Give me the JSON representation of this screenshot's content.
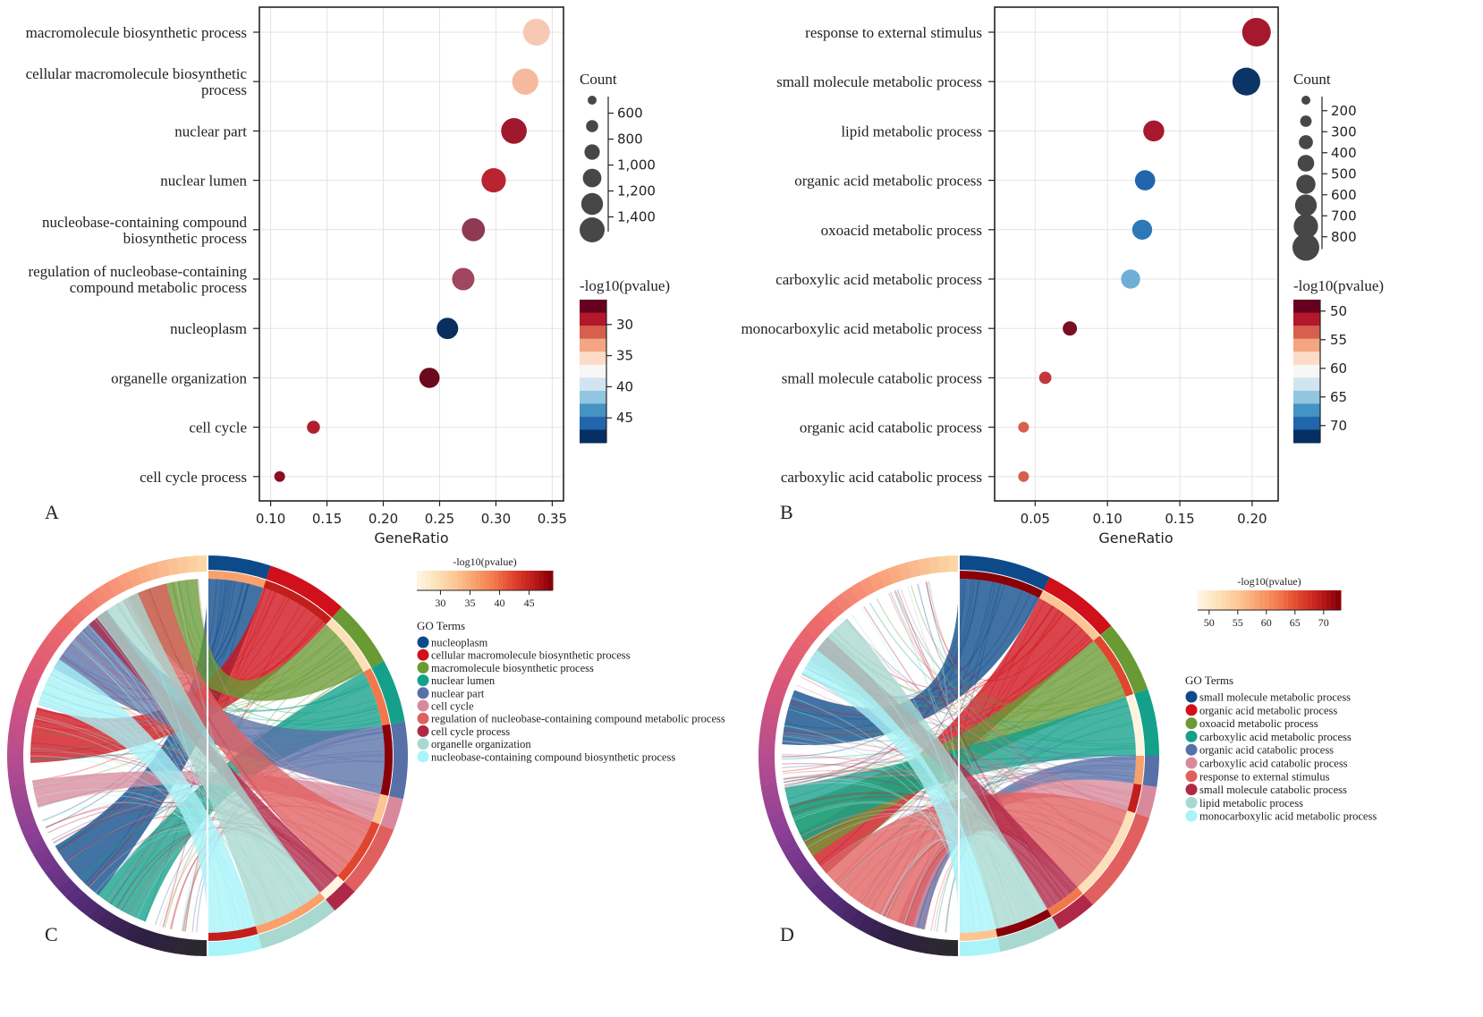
{
  "panel_labels": [
    "A",
    "B",
    "C",
    "D"
  ],
  "chart_data": [
    {
      "panel": "A",
      "type": "scatter",
      "xlabel": "GeneRatio",
      "xlim": [
        0.09,
        0.36
      ],
      "x_ticks": [
        0.1,
        0.15,
        0.2,
        0.25,
        0.3,
        0.35
      ],
      "x_tick_labels": [
        "0.10",
        "0.15",
        "0.20",
        "0.25",
        "0.30",
        "0.35"
      ],
      "grid": true,
      "size_legend": {
        "title": "Count",
        "ticks": [
          "600",
          "800",
          "1,000",
          "1,200",
          "1,400"
        ],
        "values": [
          600,
          800,
          1000,
          1200,
          1400
        ]
      },
      "color_legend": {
        "title": "-log10(pvalue)",
        "ticks": [
          "30",
          "35",
          "40",
          "45"
        ],
        "range": [
          26,
          49
        ],
        "reversed": true
      },
      "terms": [
        {
          "label": [
            "macromolecule biosynthetic process"
          ],
          "gene_ratio": 0.336,
          "count": 1450,
          "pvalue_log10": 34,
          "color": "#f7c8b3"
        },
        {
          "label": [
            "cellular macromolecule biosynthetic",
            "process"
          ],
          "gene_ratio": 0.326,
          "count": 1410,
          "pvalue_log10": 33,
          "color": "#f6b99e"
        },
        {
          "label": [
            "nuclear part"
          ],
          "gene_ratio": 0.316,
          "count": 1380,
          "pvalue_log10": 28,
          "color": "#a0182d"
        },
        {
          "label": [
            "nuclear lumen"
          ],
          "gene_ratio": 0.298,
          "count": 1300,
          "pvalue_log10": 29,
          "color": "#b82430"
        },
        {
          "label": [
            "nucleobase-containing compound",
            "biosynthetic process"
          ],
          "gene_ratio": 0.28,
          "count": 1220,
          "pvalue_log10": 26,
          "color": "#8d3a52"
        },
        {
          "label": [
            "regulation of nucleobase-containing",
            "compound metabolic process"
          ],
          "gene_ratio": 0.271,
          "count": 1180,
          "pvalue_log10": 26,
          "color": "#a14660"
        },
        {
          "label": [
            "nucleoplasm"
          ],
          "gene_ratio": 0.257,
          "count": 1120,
          "pvalue_log10": 48,
          "color": "#0a2f5f"
        },
        {
          "label": [
            "organelle organization"
          ],
          "gene_ratio": 0.241,
          "count": 1050,
          "pvalue_log10": 27,
          "color": "#6b0a1c"
        },
        {
          "label": [
            "cell cycle"
          ],
          "gene_ratio": 0.138,
          "count": 610,
          "pvalue_log10": 28,
          "color": "#b01f30"
        },
        {
          "label": [
            "cell cycle process"
          ],
          "gene_ratio": 0.108,
          "count": 470,
          "pvalue_log10": 27,
          "color": "#8a0d24"
        }
      ]
    },
    {
      "panel": "B",
      "type": "scatter",
      "xlabel": "GeneRatio",
      "xlim": [
        0.022,
        0.218
      ],
      "x_ticks": [
        0.05,
        0.1,
        0.15,
        0.2
      ],
      "x_tick_labels": [
        "0.05",
        "0.10",
        "0.15",
        "0.20"
      ],
      "grid": true,
      "size_legend": {
        "title": "Count",
        "ticks": [
          "200",
          "300",
          "400",
          "500",
          "600",
          "700",
          "800"
        ],
        "values": [
          200,
          300,
          400,
          500,
          600,
          700,
          800
        ]
      },
      "color_legend": {
        "title": "-log10(pvalue)",
        "ticks": [
          "50",
          "55",
          "60",
          "65",
          "70"
        ],
        "range": [
          48,
          73
        ],
        "reversed": true
      },
      "terms": [
        {
          "label": [
            "response to external stimulus"
          ],
          "gene_ratio": 0.203,
          "count": 840,
          "pvalue_log10": 51,
          "color": "#a5192e"
        },
        {
          "label": [
            "small molecule metabolic process"
          ],
          "gene_ratio": 0.196,
          "count": 810,
          "pvalue_log10": 72,
          "color": "#0c3466"
        },
        {
          "label": [
            "lipid metabolic process"
          ],
          "gene_ratio": 0.132,
          "count": 560,
          "pvalue_log10": 51,
          "color": "#a8192e"
        },
        {
          "label": [
            "organic acid metabolic process"
          ],
          "gene_ratio": 0.126,
          "count": 530,
          "pvalue_log10": 68,
          "color": "#2166ac"
        },
        {
          "label": [
            "oxoacid metabolic process"
          ],
          "gene_ratio": 0.124,
          "count": 520,
          "pvalue_log10": 67,
          "color": "#2e78b8"
        },
        {
          "label": [
            "carboxylic acid metabolic process"
          ],
          "gene_ratio": 0.116,
          "count": 490,
          "pvalue_log10": 64,
          "color": "#6faed5"
        },
        {
          "label": [
            "monocarboxylic acid metabolic process"
          ],
          "gene_ratio": 0.074,
          "count": 310,
          "pvalue_log10": 50,
          "color": "#7a0e22"
        },
        {
          "label": [
            "small molecule catabolic process"
          ],
          "gene_ratio": 0.057,
          "count": 240,
          "pvalue_log10": 53,
          "color": "#c2383a"
        },
        {
          "label": [
            "organic acid catabolic process"
          ],
          "gene_ratio": 0.042,
          "count": 180,
          "pvalue_log10": 55,
          "color": "#d6604d"
        },
        {
          "label": [
            "carboxylic acid catabolic process"
          ],
          "gene_ratio": 0.042,
          "count": 180,
          "pvalue_log10": 55,
          "color": "#d6604d"
        }
      ]
    },
    {
      "panel": "C",
      "type": "chord",
      "color_legend": {
        "title": "-log10(pvalue)",
        "ticks": [
          "30",
          "35",
          "40",
          "45"
        ],
        "range": [
          26,
          49
        ]
      },
      "legend_title": "GO Terms",
      "terms": [
        {
          "name": "nucleoplasm",
          "color": "#0d4a8a",
          "share": 0.07
        },
        {
          "name": "cellular macromolecule biosynthetic process",
          "color": "#d0101a",
          "share": 0.09
        },
        {
          "name": "macromolecule biosynthetic process",
          "color": "#6a9a34",
          "share": 0.075
        },
        {
          "name": "nuclear lumen",
          "color": "#14a08a",
          "share": 0.07
        },
        {
          "name": "nuclear part",
          "color": "#5870a8",
          "share": 0.085
        },
        {
          "name": "cell cycle",
          "color": "#d88a9c",
          "share": 0.035
        },
        {
          "name": "regulation of nucleobase-containing compound metabolic process",
          "color": "#e06060",
          "share": 0.08
        },
        {
          "name": "cell cycle process",
          "color": "#b02848",
          "share": 0.03
        },
        {
          "name": "organelle organization",
          "color": "#a8d8d0",
          "share": 0.09
        },
        {
          "name": "nucleobase-containing compound biosynthetic process",
          "color": "#a8f4f8",
          "share": 0.06
        }
      ]
    },
    {
      "panel": "D",
      "type": "chord",
      "color_legend": {
        "title": "-log10(pvalue)",
        "ticks": [
          "50",
          "55",
          "60",
          "65",
          "70"
        ],
        "range": [
          48,
          73
        ]
      },
      "legend_title": "GO Terms",
      "terms": [
        {
          "name": "small molecule metabolic process",
          "color": "#0d4a8a",
          "share": 0.09
        },
        {
          "name": "organic acid metabolic process",
          "color": "#d0101a",
          "share": 0.075
        },
        {
          "name": "oxoacid metabolic process",
          "color": "#6a9a34",
          "share": 0.07
        },
        {
          "name": "carboxylic acid metabolic process",
          "color": "#14a08a",
          "share": 0.065
        },
        {
          "name": "organic acid catabolic process",
          "color": "#5870a8",
          "share": 0.03
        },
        {
          "name": "carboxylic acid catabolic process",
          "color": "#d88a9c",
          "share": 0.03
        },
        {
          "name": "response to external stimulus",
          "color": "#e06060",
          "share": 0.1
        },
        {
          "name": "small molecule catabolic process",
          "color": "#b02848",
          "share": 0.04
        },
        {
          "name": "lipid metabolic process",
          "color": "#a8d8d0",
          "share": 0.06
        },
        {
          "name": "monocarboxylic acid metabolic process",
          "color": "#a8f4f8",
          "share": 0.04
        }
      ]
    }
  ]
}
